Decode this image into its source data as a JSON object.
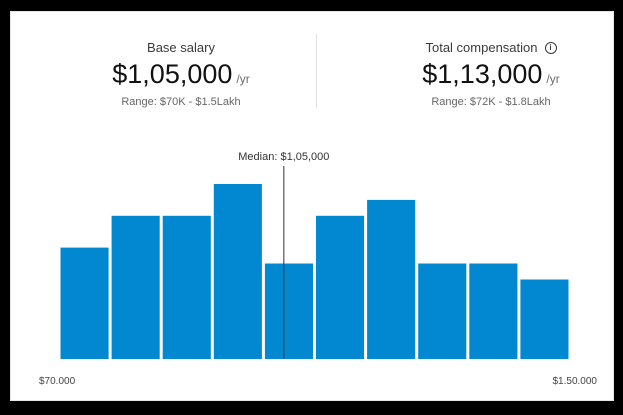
{
  "base_salary": {
    "label": "Base salary",
    "amount": "$1,05,000",
    "unit": "/yr",
    "range": "Range: $70K - $1.5Lakh"
  },
  "total_compensation": {
    "label": "Total compensation",
    "info_icon": "info-circle-icon",
    "amount": "$1,13,000",
    "unit": "/yr",
    "range": "Range: $72K - $1.8Lakh"
  },
  "chart_data": {
    "type": "bar",
    "values": [
      7,
      9,
      9,
      11,
      6,
      9,
      10,
      6,
      6,
      5
    ],
    "bar_color": "#0288d1",
    "median_label": "Median: $1,05,000",
    "median_position": 0.44,
    "x_min_label": "$70.000",
    "x_max_label": "$1.50.000",
    "grid": false
  }
}
